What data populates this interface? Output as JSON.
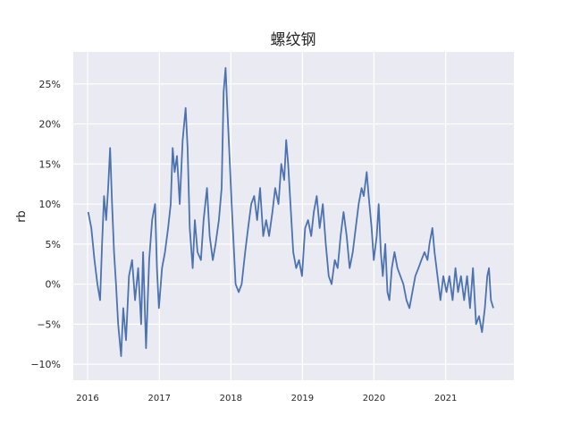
{
  "chart_data": {
    "type": "line",
    "title": "螺纹钢",
    "xlabel": "",
    "ylabel": "rb",
    "grid": true,
    "legend": "none",
    "xlim": [
      "2015-10-20",
      "2021-12-15"
    ],
    "ylim": [
      -0.12,
      0.29
    ],
    "x_ticks": [
      "2016",
      "2017",
      "2018",
      "2019",
      "2020",
      "2021"
    ],
    "x_tick_dates": [
      "2016-01-01",
      "2017-01-01",
      "2018-01-01",
      "2019-01-01",
      "2020-01-01",
      "2021-01-01"
    ],
    "y_ticks": [
      -0.1,
      -0.05,
      0.0,
      0.05,
      0.1,
      0.15,
      0.2,
      0.25
    ],
    "y_tick_labels": [
      "−10%",
      "−5%",
      "0%",
      "5%",
      "10%",
      "15%",
      "20%",
      "25%"
    ],
    "colors": {
      "line": "#4c72b0",
      "background": "#eaeaf2",
      "grid": "#ffffff"
    },
    "series": [
      {
        "points": [
          [
            "2016-01-04",
            0.09
          ],
          [
            "2016-01-20",
            0.07
          ],
          [
            "2016-02-05",
            0.03
          ],
          [
            "2016-02-20",
            0.0
          ],
          [
            "2016-03-05",
            -0.02
          ],
          [
            "2016-03-15",
            0.05
          ],
          [
            "2016-03-25",
            0.11
          ],
          [
            "2016-04-05",
            0.08
          ],
          [
            "2016-04-15",
            0.12
          ],
          [
            "2016-04-25",
            0.17
          ],
          [
            "2016-05-05",
            0.1
          ],
          [
            "2016-05-15",
            0.04
          ],
          [
            "2016-05-25",
            0.0
          ],
          [
            "2016-06-05",
            -0.05
          ],
          [
            "2016-06-20",
            -0.09
          ],
          [
            "2016-07-01",
            -0.03
          ],
          [
            "2016-07-15",
            -0.07
          ],
          [
            "2016-07-30",
            0.01
          ],
          [
            "2016-08-15",
            0.03
          ],
          [
            "2016-08-30",
            -0.02
          ],
          [
            "2016-09-15",
            0.02
          ],
          [
            "2016-09-30",
            -0.05
          ],
          [
            "2016-10-10",
            0.04
          ],
          [
            "2016-10-25",
            -0.08
          ],
          [
            "2016-11-10",
            0.03
          ],
          [
            "2016-11-25",
            0.08
          ],
          [
            "2016-12-10",
            0.1
          ],
          [
            "2016-12-20",
            0.02
          ],
          [
            "2016-12-30",
            -0.03
          ],
          [
            "2017-01-15",
            0.02
          ],
          [
            "2017-01-30",
            0.04
          ],
          [
            "2017-02-15",
            0.07
          ],
          [
            "2017-02-28",
            0.1
          ],
          [
            "2017-03-10",
            0.17
          ],
          [
            "2017-03-20",
            0.14
          ],
          [
            "2017-04-01",
            0.16
          ],
          [
            "2017-04-15",
            0.1
          ],
          [
            "2017-04-30",
            0.18
          ],
          [
            "2017-05-15",
            0.22
          ],
          [
            "2017-05-25",
            0.17
          ],
          [
            "2017-06-05",
            0.07
          ],
          [
            "2017-06-20",
            0.02
          ],
          [
            "2017-07-01",
            0.08
          ],
          [
            "2017-07-15",
            0.04
          ],
          [
            "2017-08-01",
            0.03
          ],
          [
            "2017-08-15",
            0.08
          ],
          [
            "2017-09-01",
            0.12
          ],
          [
            "2017-09-15",
            0.06
          ],
          [
            "2017-10-01",
            0.03
          ],
          [
            "2017-10-15",
            0.05
          ],
          [
            "2017-11-01",
            0.08
          ],
          [
            "2017-11-15",
            0.12
          ],
          [
            "2017-11-25",
            0.24
          ],
          [
            "2017-12-05",
            0.27
          ],
          [
            "2017-12-12",
            0.23
          ],
          [
            "2017-12-25",
            0.16
          ],
          [
            "2018-01-05",
            0.1
          ],
          [
            "2018-01-15",
            0.05
          ],
          [
            "2018-01-25",
            0.0
          ],
          [
            "2018-02-10",
            -0.01
          ],
          [
            "2018-02-25",
            0.0
          ],
          [
            "2018-03-15",
            0.04
          ],
          [
            "2018-03-30",
            0.07
          ],
          [
            "2018-04-15",
            0.1
          ],
          [
            "2018-04-30",
            0.11
          ],
          [
            "2018-05-15",
            0.08
          ],
          [
            "2018-05-30",
            0.12
          ],
          [
            "2018-06-15",
            0.06
          ],
          [
            "2018-06-30",
            0.08
          ],
          [
            "2018-07-15",
            0.06
          ],
          [
            "2018-08-01",
            0.09
          ],
          [
            "2018-08-15",
            0.12
          ],
          [
            "2018-09-01",
            0.1
          ],
          [
            "2018-09-15",
            0.15
          ],
          [
            "2018-09-30",
            0.13
          ],
          [
            "2018-10-10",
            0.18
          ],
          [
            "2018-10-20",
            0.15
          ],
          [
            "2018-11-01",
            0.1
          ],
          [
            "2018-11-15",
            0.04
          ],
          [
            "2018-11-30",
            0.02
          ],
          [
            "2018-12-15",
            0.03
          ],
          [
            "2018-12-30",
            0.01
          ],
          [
            "2019-01-15",
            0.07
          ],
          [
            "2019-01-30",
            0.08
          ],
          [
            "2019-02-15",
            0.06
          ],
          [
            "2019-02-28",
            0.09
          ],
          [
            "2019-03-15",
            0.11
          ],
          [
            "2019-03-30",
            0.07
          ],
          [
            "2019-04-15",
            0.1
          ],
          [
            "2019-04-30",
            0.05
          ],
          [
            "2019-05-15",
            0.01
          ],
          [
            "2019-05-30",
            0.0
          ],
          [
            "2019-06-15",
            0.03
          ],
          [
            "2019-06-30",
            0.02
          ],
          [
            "2019-07-15",
            0.06
          ],
          [
            "2019-07-30",
            0.09
          ],
          [
            "2019-08-15",
            0.06
          ],
          [
            "2019-08-30",
            0.02
          ],
          [
            "2019-09-15",
            0.04
          ],
          [
            "2019-09-30",
            0.07
          ],
          [
            "2019-10-15",
            0.1
          ],
          [
            "2019-10-30",
            0.12
          ],
          [
            "2019-11-10",
            0.11
          ],
          [
            "2019-11-25",
            0.14
          ],
          [
            "2019-12-05",
            0.11
          ],
          [
            "2019-12-20",
            0.07
          ],
          [
            "2019-12-31",
            0.03
          ],
          [
            "2020-01-15",
            0.06
          ],
          [
            "2020-01-25",
            0.1
          ],
          [
            "2020-02-05",
            0.04
          ],
          [
            "2020-02-15",
            0.01
          ],
          [
            "2020-02-28",
            0.05
          ],
          [
            "2020-03-10",
            -0.01
          ],
          [
            "2020-03-20",
            -0.02
          ],
          [
            "2020-04-01",
            0.02
          ],
          [
            "2020-04-15",
            0.04
          ],
          [
            "2020-04-30",
            0.02
          ],
          [
            "2020-05-15",
            0.01
          ],
          [
            "2020-05-30",
            0.0
          ],
          [
            "2020-06-15",
            -0.02
          ],
          [
            "2020-06-30",
            -0.03
          ],
          [
            "2020-07-15",
            -0.01
          ],
          [
            "2020-07-30",
            0.01
          ],
          [
            "2020-08-15",
            0.02
          ],
          [
            "2020-08-30",
            0.03
          ],
          [
            "2020-09-15",
            0.04
          ],
          [
            "2020-09-30",
            0.03
          ],
          [
            "2020-10-10",
            0.05
          ],
          [
            "2020-10-25",
            0.07
          ],
          [
            "2020-11-05",
            0.04
          ],
          [
            "2020-11-20",
            0.01
          ],
          [
            "2020-12-05",
            -0.02
          ],
          [
            "2020-12-20",
            0.01
          ],
          [
            "2021-01-05",
            -0.01
          ],
          [
            "2021-01-20",
            0.01
          ],
          [
            "2021-02-05",
            -0.02
          ],
          [
            "2021-02-20",
            0.02
          ],
          [
            "2021-03-05",
            -0.01
          ],
          [
            "2021-03-20",
            0.01
          ],
          [
            "2021-04-05",
            -0.02
          ],
          [
            "2021-04-20",
            0.01
          ],
          [
            "2021-05-05",
            -0.03
          ],
          [
            "2021-05-20",
            0.02
          ],
          [
            "2021-06-05",
            -0.05
          ],
          [
            "2021-06-20",
            -0.04
          ],
          [
            "2021-07-05",
            -0.06
          ],
          [
            "2021-07-20",
            -0.03
          ],
          [
            "2021-08-01",
            0.01
          ],
          [
            "2021-08-10",
            0.02
          ],
          [
            "2021-08-20",
            -0.02
          ],
          [
            "2021-09-01",
            -0.03
          ]
        ]
      }
    ]
  }
}
